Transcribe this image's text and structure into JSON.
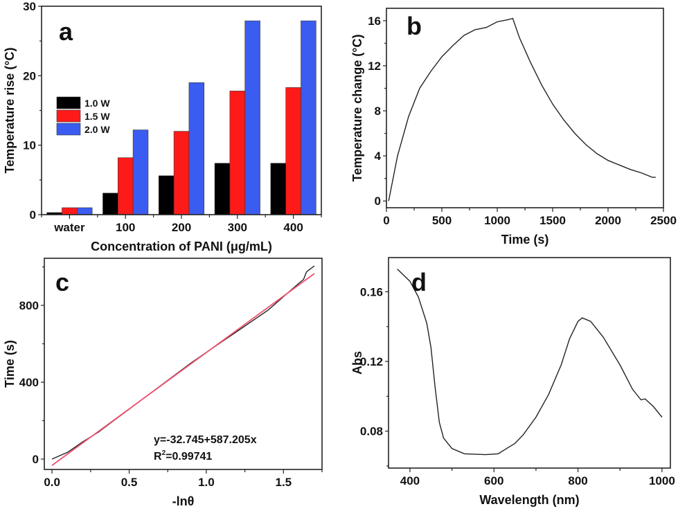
{
  "chart_data": [
    {
      "panel": "a",
      "type": "bar",
      "xlabel": "Concentration of PANI (μg/mL)",
      "ylabel": "Temperature rise (°C)",
      "categories": [
        "water",
        "100",
        "200",
        "300",
        "400"
      ],
      "ylim": [
        0,
        30
      ],
      "yticks": [
        0,
        10,
        20,
        30
      ],
      "legend_position": "center-left",
      "series": [
        {
          "name": "1.0 W",
          "color": "#000000",
          "values": [
            0.3,
            3.1,
            5.6,
            7.4,
            7.4
          ]
        },
        {
          "name": "1.5 W",
          "color": "#ff1a1a",
          "values": [
            1.0,
            8.2,
            12.0,
            17.8,
            18.3
          ]
        },
        {
          "name": "2.0 W",
          "color": "#3b5cf0",
          "values": [
            1.0,
            12.2,
            19.0,
            27.9,
            27.9
          ]
        }
      ]
    },
    {
      "panel": "b",
      "type": "line",
      "xlabel": "Time (s)",
      "ylabel": "Temperature change (°C)",
      "xlim": [
        0,
        2500
      ],
      "ylim": [
        -0.6,
        17.1
      ],
      "xticks": [
        0,
        500,
        1000,
        1500,
        2000,
        2500
      ],
      "yticks": [
        0,
        4,
        8,
        12,
        16
      ],
      "series": [
        {
          "color": "#222222",
          "x": [
            20,
            50,
            100,
            200,
            300,
            400,
            500,
            600,
            700,
            800,
            900,
            1000,
            1100,
            1140,
            1200,
            1300,
            1400,
            1500,
            1600,
            1700,
            1800,
            1900,
            2000,
            2100,
            2200,
            2300,
            2400,
            2430
          ],
          "y": [
            0,
            1.5,
            4,
            7.5,
            10,
            11.5,
            12.8,
            13.8,
            14.7,
            15.2,
            15.4,
            15.9,
            16.1,
            16.2,
            14.5,
            12.3,
            10.3,
            8.6,
            7.2,
            6.0,
            5.0,
            4.2,
            3.6,
            3.2,
            2.8,
            2.5,
            2.1,
            2.1
          ]
        }
      ]
    },
    {
      "panel": "c",
      "type": "line",
      "xlabel": "-lnθ",
      "ylabel": "Time (s)",
      "xlim": [
        -0.05,
        1.75
      ],
      "ylim": [
        -54,
        1045
      ],
      "xticks": [
        0.0,
        0.5,
        1.0,
        1.5
      ],
      "xtick_labels": [
        "0.0",
        "0.5",
        "1.0",
        "1.5"
      ],
      "yticks": [
        0,
        400,
        800
      ],
      "annotation": {
        "equation": "y=-32.745+587.205x",
        "r2_prefix": "R",
        "r2_sup": "2",
        "r2_value": "=0.99741"
      },
      "series": [
        {
          "color": "#222222",
          "x": [
            0,
            0.1,
            0.2,
            0.3,
            0.4,
            0.5,
            0.6,
            0.7,
            0.8,
            0.9,
            1.0,
            1.1,
            1.2,
            1.3,
            1.4,
            1.5,
            1.55,
            1.6,
            1.63,
            1.65,
            1.7
          ],
          "y": [
            0,
            35,
            90,
            140,
            200,
            260,
            320,
            380,
            440,
            500,
            555,
            610,
            665,
            720,
            775,
            845,
            880,
            915,
            935,
            975,
            1005
          ]
        },
        {
          "color": "#f0506e",
          "x": [
            0,
            1.7
          ],
          "y": [
            -32.745,
            965.5
          ]
        }
      ]
    },
    {
      "panel": "d",
      "type": "line",
      "xlabel": "Wavelength (nm)",
      "ylabel": "Abs",
      "xlim": [
        349,
        1020
      ],
      "ylim": [
        0.0588,
        0.1796
      ],
      "xticks": [
        400,
        600,
        800,
        1000
      ],
      "yticks": [
        0.08,
        0.12,
        0.16
      ],
      "ytick_labels": [
        "0.08",
        "0.12",
        "0.16"
      ],
      "series": [
        {
          "color": "#222222",
          "x": [
            370,
            400,
            420,
            440,
            450,
            460,
            470,
            480,
            500,
            530,
            580,
            610,
            630,
            650,
            670,
            700,
            730,
            760,
            780,
            800,
            810,
            830,
            860,
            900,
            930,
            950,
            960,
            980,
            1000
          ],
          "y": [
            0.173,
            0.166,
            0.157,
            0.142,
            0.128,
            0.105,
            0.085,
            0.076,
            0.07,
            0.067,
            0.0665,
            0.067,
            0.07,
            0.073,
            0.078,
            0.088,
            0.101,
            0.118,
            0.133,
            0.143,
            0.145,
            0.143,
            0.134,
            0.118,
            0.104,
            0.098,
            0.0985,
            0.094,
            0.088
          ]
        }
      ]
    }
  ]
}
